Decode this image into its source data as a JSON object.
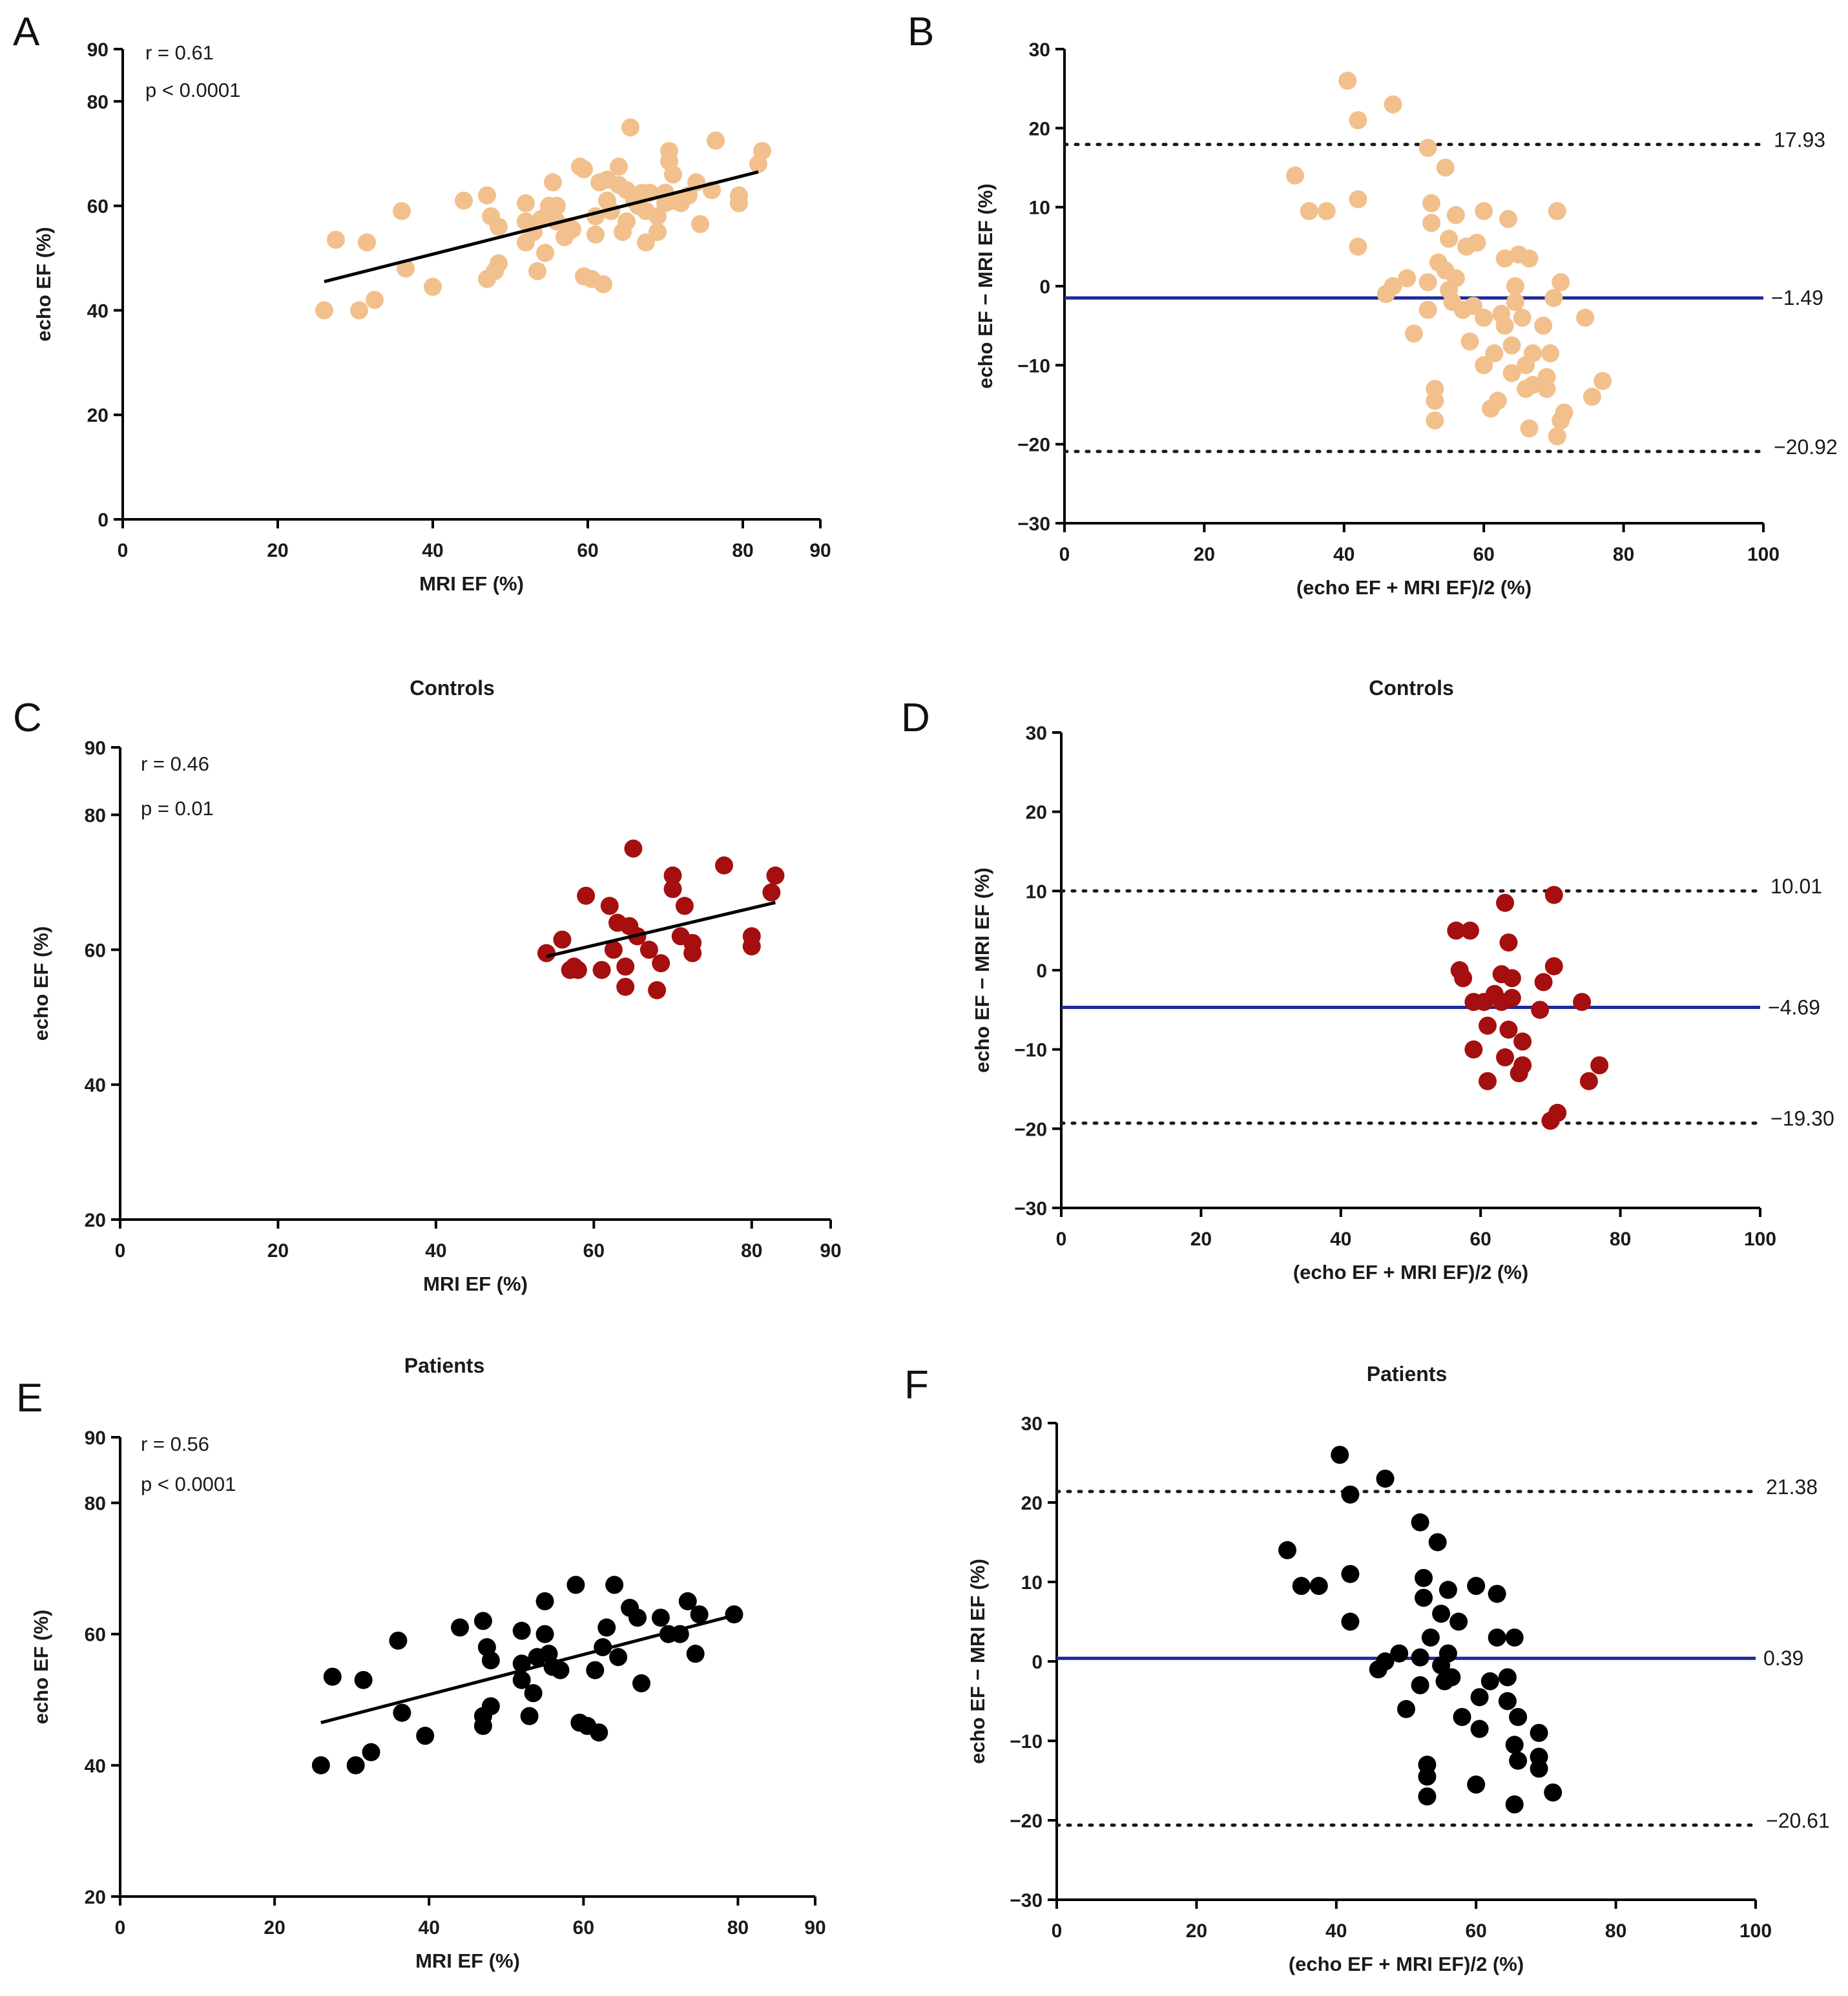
{
  "colors": {
    "all": "#f2c08c",
    "controls": "#a50f0f",
    "patients": "#000000",
    "mean_line": "#1e2a9a",
    "limit_line": "#1a1a1a"
  },
  "chart_data": [
    {
      "id": "A",
      "type": "scatter",
      "letter": "A",
      "title": "",
      "xlabel": "MRI EF (%)",
      "ylabel": "echo EF (%)",
      "xlim": [
        0,
        90
      ],
      "ylim": [
        0,
        90
      ],
      "xticks": [
        0,
        20,
        40,
        60,
        80,
        90
      ],
      "yticks": [
        0,
        20,
        40,
        60,
        80,
        90
      ],
      "stats": [
        "r = 0.61",
        "p < 0.0001"
      ],
      "color_key": "all",
      "fit": {
        "x": [
          26,
          82
        ],
        "y": [
          45.5,
          66.5
        ]
      },
      "points": [
        [
          26,
          40
        ],
        [
          27.5,
          53.5
        ],
        [
          30.5,
          40
        ],
        [
          31.5,
          53
        ],
        [
          32.5,
          42
        ],
        [
          36,
          59
        ],
        [
          36.5,
          48
        ],
        [
          40,
          44.5
        ],
        [
          44,
          61
        ],
        [
          47,
          62
        ],
        [
          47,
          46
        ],
        [
          47.5,
          58
        ],
        [
          48,
          47.5
        ],
        [
          48.5,
          56
        ],
        [
          48.5,
          49
        ],
        [
          52,
          60.5
        ],
        [
          52,
          57
        ],
        [
          52,
          53
        ],
        [
          53,
          55
        ],
        [
          53.5,
          47.5
        ],
        [
          54,
          57.5
        ],
        [
          54.5,
          51
        ],
        [
          55,
          59
        ],
        [
          55,
          60
        ],
        [
          55.5,
          64.5
        ],
        [
          56,
          60
        ],
        [
          56,
          57
        ],
        [
          57,
          54
        ],
        [
          57.5,
          56
        ],
        [
          58,
          55.5
        ],
        [
          59,
          67.5
        ],
        [
          59.5,
          67
        ],
        [
          59.5,
          46.5
        ],
        [
          60.5,
          46
        ],
        [
          61,
          54.5
        ],
        [
          61,
          58
        ],
        [
          61.5,
          64.5
        ],
        [
          62,
          45
        ],
        [
          62.5,
          61
        ],
        [
          62.5,
          65
        ],
        [
          63,
          59
        ],
        [
          64,
          64
        ],
        [
          64,
          67.5
        ],
        [
          64.5,
          55
        ],
        [
          65,
          57
        ],
        [
          65,
          63
        ],
        [
          65.5,
          75
        ],
        [
          66,
          61
        ],
        [
          66.5,
          60
        ],
        [
          67,
          62.5
        ],
        [
          67.5,
          59
        ],
        [
          67.5,
          53
        ],
        [
          68,
          62.5
        ],
        [
          69,
          58
        ],
        [
          69,
          55
        ],
        [
          70,
          62.5
        ],
        [
          70,
          60.5
        ],
        [
          70.5,
          70.5
        ],
        [
          70.5,
          68.5
        ],
        [
          71,
          61
        ],
        [
          71,
          66
        ],
        [
          72,
          60.5
        ],
        [
          73,
          62
        ],
        [
          74,
          64.5
        ],
        [
          74.5,
          56.5
        ],
        [
          76,
          63
        ],
        [
          76.5,
          72.5
        ],
        [
          79.5,
          60.5
        ],
        [
          79.5,
          62
        ],
        [
          82,
          68
        ],
        [
          82.5,
          70.5
        ]
      ]
    },
    {
      "id": "B",
      "type": "scatter",
      "letter": "B",
      "title": "",
      "xlabel": "(echo EF + MRI EF)/2 (%)",
      "ylabel": "echo EF − MRI EF (%)",
      "xlim": [
        0,
        100
      ],
      "ylim": [
        -30,
        30
      ],
      "xticks": [
        0,
        20,
        40,
        60,
        80,
        100
      ],
      "yticks": [
        -30,
        -20,
        -10,
        0,
        10,
        20,
        30
      ],
      "stats": [],
      "color_key": "all",
      "mean": {
        "value": -1.49,
        "label": "−1.49"
      },
      "upper": {
        "value": 17.93,
        "label": "17.93"
      },
      "lower": {
        "value": -20.92,
        "label": "−20.92"
      },
      "points": [
        [
          33,
          14
        ],
        [
          35,
          9.5
        ],
        [
          37.5,
          9.5
        ],
        [
          40.5,
          26
        ],
        [
          42,
          21
        ],
        [
          42,
          11
        ],
        [
          42,
          5
        ],
        [
          47,
          23
        ],
        [
          46,
          -1
        ],
        [
          47,
          0
        ],
        [
          49,
          1
        ],
        [
          50,
          -6
        ],
        [
          52,
          17.5
        ],
        [
          52.5,
          10.5
        ],
        [
          52.5,
          8
        ],
        [
          52,
          0.5
        ],
        [
          52,
          -3
        ],
        [
          53,
          -13
        ],
        [
          53,
          -14.5
        ],
        [
          53,
          -17
        ],
        [
          53.5,
          3
        ],
        [
          54.5,
          2
        ],
        [
          54.5,
          15
        ],
        [
          55,
          -0.5
        ],
        [
          55,
          6
        ],
        [
          55.5,
          -2
        ],
        [
          56,
          9
        ],
        [
          56,
          1
        ],
        [
          57,
          -3
        ],
        [
          57.5,
          5
        ],
        [
          58,
          -7
        ],
        [
          58.5,
          -2.5
        ],
        [
          59,
          5.5
        ],
        [
          60,
          9.5
        ],
        [
          60,
          -4
        ],
        [
          60,
          -10
        ],
        [
          61,
          -15.5
        ],
        [
          61.5,
          -8.5
        ],
        [
          62,
          -14.5
        ],
        [
          62.5,
          -3.5
        ],
        [
          63,
          3.5
        ],
        [
          63.5,
          8.5
        ],
        [
          63,
          -5
        ],
        [
          64,
          -11
        ],
        [
          64,
          -7.5
        ],
        [
          64.5,
          0
        ],
        [
          64.5,
          -2
        ],
        [
          65,
          4
        ],
        [
          65.5,
          -4
        ],
        [
          66,
          -10
        ],
        [
          66.5,
          -18
        ],
        [
          66.5,
          3.5
        ],
        [
          66,
          -13
        ],
        [
          67,
          -8.5
        ],
        [
          67,
          -12.5
        ],
        [
          68.5,
          -5
        ],
        [
          69,
          -13
        ],
        [
          69.5,
          -8.5
        ],
        [
          69,
          -11.5
        ],
        [
          70,
          -1.5
        ],
        [
          70.5,
          9.5
        ],
        [
          70.5,
          -19
        ],
        [
          71,
          0.5
        ],
        [
          71,
          -17
        ],
        [
          71.5,
          -16
        ],
        [
          74.5,
          -4
        ],
        [
          75.5,
          -14
        ],
        [
          77,
          -12
        ]
      ]
    },
    {
      "id": "C",
      "type": "scatter",
      "letter": "C",
      "title": "Controls",
      "xlabel": "MRI EF (%)",
      "ylabel": "echo EF (%)",
      "xlim": [
        0,
        90
      ],
      "ylim": [
        20,
        90
      ],
      "xticks": [
        0,
        20,
        40,
        60,
        80,
        90
      ],
      "yticks": [
        20,
        40,
        60,
        80,
        90
      ],
      "stats": [
        "r = 0.46",
        "p = 0.01"
      ],
      "color_key": "controls",
      "fit": {
        "x": [
          54,
          83
        ],
        "y": [
          59,
          67
        ]
      },
      "points": [
        [
          54,
          59.5
        ],
        [
          56,
          61.5
        ],
        [
          57,
          57
        ],
        [
          57.5,
          57.5
        ],
        [
          58,
          57
        ],
        [
          59,
          68
        ],
        [
          61,
          57
        ],
        [
          62,
          66.5
        ],
        [
          62.5,
          60
        ],
        [
          63,
          64
        ],
        [
          64,
          54.5
        ],
        [
          64,
          57.5
        ],
        [
          64.5,
          63.5
        ],
        [
          65,
          75
        ],
        [
          65.5,
          62
        ],
        [
          67,
          60
        ],
        [
          68,
          54
        ],
        [
          68.5,
          58
        ],
        [
          70,
          71
        ],
        [
          70,
          69
        ],
        [
          71,
          62
        ],
        [
          71.5,
          66.5
        ],
        [
          72.5,
          59.5
        ],
        [
          72.5,
          61
        ],
        [
          76.5,
          72.5
        ],
        [
          80,
          60.5
        ],
        [
          80,
          62
        ],
        [
          82.5,
          68.5
        ],
        [
          83,
          71
        ]
      ]
    },
    {
      "id": "D",
      "type": "scatter",
      "letter": "D",
      "title": "Controls",
      "xlabel": "(echo EF + MRI EF)/2 (%)",
      "ylabel": "echo EF − MRI EF (%)",
      "xlim": [
        0,
        100
      ],
      "ylim": [
        -30,
        30
      ],
      "xticks": [
        0,
        20,
        40,
        60,
        80,
        100
      ],
      "yticks": [
        -30,
        -20,
        -10,
        0,
        10,
        20,
        30
      ],
      "stats": [],
      "color_key": "controls",
      "mean": {
        "value": -4.69,
        "label": "−4.69"
      },
      "upper": {
        "value": 10.01,
        "label": "10.01"
      },
      "lower": {
        "value": -19.3,
        "label": "−19.30"
      },
      "points": [
        [
          56.5,
          5
        ],
        [
          57,
          0
        ],
        [
          57.5,
          -1
        ],
        [
          58.5,
          5
        ],
        [
          59,
          -4
        ],
        [
          59,
          -10
        ],
        [
          60.5,
          -4
        ],
        [
          61,
          -7
        ],
        [
          61,
          -14
        ],
        [
          62,
          -3
        ],
        [
          63,
          -4
        ],
        [
          63,
          -0.5
        ],
        [
          63.5,
          8.5
        ],
        [
          63.5,
          -11
        ],
        [
          64,
          -7.5
        ],
        [
          64,
          3.5
        ],
        [
          64.5,
          -1
        ],
        [
          64.5,
          -3.5
        ],
        [
          65.5,
          -13
        ],
        [
          66,
          -12
        ],
        [
          66,
          -9
        ],
        [
          68.5,
          -5
        ],
        [
          69,
          -1.5
        ],
        [
          70,
          -19
        ],
        [
          70.5,
          0.5
        ],
        [
          70.5,
          9.5
        ],
        [
          71,
          -18
        ],
        [
          74.5,
          -4
        ],
        [
          75.5,
          -14
        ],
        [
          77,
          -12
        ]
      ]
    },
    {
      "id": "E",
      "type": "scatter",
      "letter": "E",
      "title": "Patients",
      "xlabel": "MRI EF (%)",
      "ylabel": "echo EF (%)",
      "xlim": [
        0,
        90
      ],
      "ylim": [
        20,
        90
      ],
      "xticks": [
        0,
        20,
        40,
        60,
        80,
        90
      ],
      "yticks": [
        20,
        40,
        60,
        80,
        90
      ],
      "stats": [
        "r = 0.56",
        "p < 0.0001"
      ],
      "color_key": "patients",
      "fit": {
        "x": [
          26,
          80
        ],
        "y": [
          46.5,
          63
        ]
      },
      "points": [
        [
          26,
          40
        ],
        [
          27.5,
          53.5
        ],
        [
          30.5,
          40
        ],
        [
          31.5,
          53
        ],
        [
          32.5,
          42
        ],
        [
          36,
          59
        ],
        [
          36.5,
          48
        ],
        [
          39.5,
          44.5
        ],
        [
          44,
          61
        ],
        [
          47,
          62
        ],
        [
          47,
          46
        ],
        [
          47,
          47.5
        ],
        [
          47.5,
          58
        ],
        [
          48,
          56
        ],
        [
          48,
          49
        ],
        [
          52,
          60.5
        ],
        [
          52,
          55.5
        ],
        [
          52,
          53
        ],
        [
          53,
          47.5
        ],
        [
          53.5,
          51
        ],
        [
          54,
          56.5
        ],
        [
          55,
          65
        ],
        [
          55,
          60
        ],
        [
          55.5,
          57
        ],
        [
          56,
          55
        ],
        [
          57,
          54.5
        ],
        [
          59,
          67.5
        ],
        [
          59.5,
          46.5
        ],
        [
          60.5,
          46
        ],
        [
          61.5,
          54.5
        ],
        [
          62,
          45
        ],
        [
          62.5,
          58
        ],
        [
          63,
          61
        ],
        [
          64,
          67.5
        ],
        [
          64.5,
          56.5
        ],
        [
          66,
          64
        ],
        [
          67,
          62.5
        ],
        [
          67.5,
          52.5
        ],
        [
          70,
          62.5
        ],
        [
          71,
          60
        ],
        [
          72.5,
          60
        ],
        [
          73.5,
          65
        ],
        [
          74.5,
          57
        ],
        [
          75,
          63
        ],
        [
          79.5,
          63
        ]
      ]
    },
    {
      "id": "F",
      "type": "scatter",
      "letter": "F",
      "title": "Patients",
      "xlabel": "(echo EF + MRI EF)/2 (%)",
      "ylabel": "echo EF − MRI EF (%)",
      "xlim": [
        0,
        100
      ],
      "ylim": [
        -30,
        30
      ],
      "xticks": [
        0,
        20,
        40,
        60,
        80,
        100
      ],
      "yticks": [
        -30,
        -20,
        -10,
        0,
        10,
        20,
        30
      ],
      "stats": [],
      "color_key": "patients",
      "mean": {
        "value": 0.39,
        "label": "0.39"
      },
      "upper": {
        "value": 21.38,
        "label": "21.38"
      },
      "lower": {
        "value": -20.61,
        "label": "−20.61"
      },
      "points": [
        [
          33,
          14
        ],
        [
          35,
          9.5
        ],
        [
          37.5,
          9.5
        ],
        [
          40.5,
          26
        ],
        [
          42,
          21
        ],
        [
          42,
          11
        ],
        [
          42,
          5
        ],
        [
          47,
          23
        ],
        [
          46,
          -1
        ],
        [
          47,
          0
        ],
        [
          49,
          1
        ],
        [
          50,
          -6
        ],
        [
          52,
          17.5
        ],
        [
          52.5,
          10.5
        ],
        [
          52.5,
          8
        ],
        [
          52,
          0.5
        ],
        [
          52,
          -3
        ],
        [
          53,
          -13
        ],
        [
          53,
          -14.5
        ],
        [
          53,
          -17
        ],
        [
          53.5,
          3
        ],
        [
          54.5,
          15
        ],
        [
          55,
          -0.5
        ],
        [
          55,
          6
        ],
        [
          56,
          9
        ],
        [
          56,
          1
        ],
        [
          55.5,
          -2.5
        ],
        [
          56.5,
          -2
        ],
        [
          57.5,
          5
        ],
        [
          58,
          -7
        ],
        [
          60,
          9.5
        ],
        [
          60.5,
          -4.5
        ],
        [
          60.5,
          -8.5
        ],
        [
          60,
          -15.5
        ],
        [
          62,
          -2.5
        ],
        [
          63,
          8.5
        ],
        [
          63,
          3
        ],
        [
          64.5,
          -2
        ],
        [
          64.5,
          -5
        ],
        [
          65.5,
          3
        ],
        [
          65.5,
          -10.5
        ],
        [
          66,
          -7
        ],
        [
          66,
          -12.5
        ],
        [
          65.5,
          -18
        ],
        [
          69,
          -9
        ],
        [
          69,
          -12
        ],
        [
          69,
          -13.5
        ],
        [
          71,
          -16.5
        ]
      ]
    }
  ]
}
